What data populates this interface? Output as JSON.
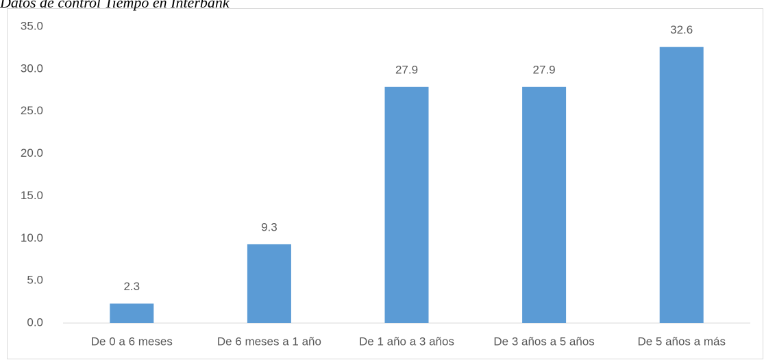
{
  "chart_data": {
    "type": "bar",
    "title": "Datos de control Tiempo en Interbank",
    "categories": [
      "De 0 a 6 meses",
      "De 6 meses a 1 año",
      "De 1 año a 3 años",
      "De 3 años a 5 años",
      "De 5 años a más"
    ],
    "values": [
      2.3,
      9.3,
      27.9,
      27.9,
      32.6
    ],
    "color": "#5b9bd5",
    "ylim": [
      0,
      35
    ],
    "yticks": [
      {
        "value": 0,
        "label": "0.0"
      },
      {
        "value": 5,
        "label": "5.0"
      },
      {
        "value": 10,
        "label": "10.0"
      },
      {
        "value": 15,
        "label": "15.0"
      },
      {
        "value": 20,
        "label": "20.0"
      },
      {
        "value": 25,
        "label": "25.0"
      },
      {
        "value": 30,
        "label": "30.0"
      },
      {
        "value": 35,
        "label": "35.0"
      }
    ],
    "grid": false
  }
}
